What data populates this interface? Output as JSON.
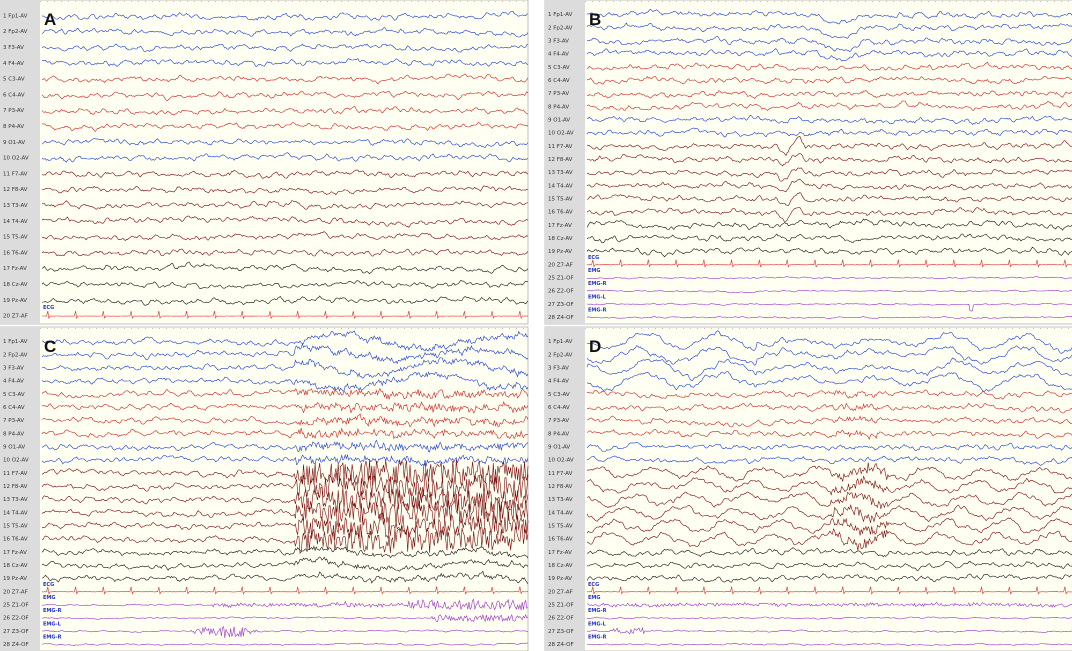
{
  "panels": [
    {
      "letter": "A",
      "channels": [
        {
          "label": "1 Fp1-AV",
          "color": "#1a3cd0"
        },
        {
          "label": "2 Fp2-AV",
          "color": "#1a3cd0"
        },
        {
          "label": "3 F3-AV",
          "color": "#1a3cd0"
        },
        {
          "label": "4 F4-AV",
          "color": "#1a3cd0"
        },
        {
          "label": "5 C3-AV",
          "color": "#cc2222"
        },
        {
          "label": "6 C4-AV",
          "color": "#cc2222"
        },
        {
          "label": "7 P3-AV",
          "color": "#cc2222"
        },
        {
          "label": "8 P4-AV",
          "color": "#cc2222"
        },
        {
          "label": "9 O1-AV",
          "color": "#1a3cd0"
        },
        {
          "label": "10 O2-AV",
          "color": "#1a3cd0"
        },
        {
          "label": "11 F7-AV",
          "color": "#7a0a0a"
        },
        {
          "label": "12 F8-AV",
          "color": "#7a0a0a"
        },
        {
          "label": "13 T3-AV",
          "color": "#7a0a0a"
        },
        {
          "label": "14 T4-AV",
          "color": "#7a0a0a"
        },
        {
          "label": "15 T5-AV",
          "color": "#7a0a0a"
        },
        {
          "label": "16 T6-AV",
          "color": "#7a0a0a"
        },
        {
          "label": "17 Fz-AV",
          "color": "#111111"
        },
        {
          "label": "18 Cz-AV",
          "color": "#111111"
        },
        {
          "label": "19 Pz-AV",
          "color": "#111111"
        },
        {
          "label": "20 Z7-AF",
          "tag": "ECG",
          "color": "#e03030"
        }
      ]
    },
    {
      "letter": "B",
      "channels": [
        {
          "label": "1 Fp1-AV",
          "color": "#1a3cd0"
        },
        {
          "label": "2 Fp2-AV",
          "color": "#1a3cd0"
        },
        {
          "label": "3 F3-AV",
          "color": "#1a3cd0"
        },
        {
          "label": "4 F4-AV",
          "color": "#1a3cd0"
        },
        {
          "label": "5 C3-AV",
          "color": "#cc2222"
        },
        {
          "label": "6 C4-AV",
          "color": "#cc2222"
        },
        {
          "label": "7 P3-AV",
          "color": "#cc2222"
        },
        {
          "label": "8 P4-AV",
          "color": "#cc2222"
        },
        {
          "label": "9 O1-AV",
          "color": "#1a3cd0"
        },
        {
          "label": "10 O2-AV",
          "color": "#1a3cd0"
        },
        {
          "label": "11 F7-AV",
          "color": "#7a0a0a"
        },
        {
          "label": "12 F8-AV",
          "color": "#7a0a0a"
        },
        {
          "label": "13 T3-AV",
          "color": "#7a0a0a"
        },
        {
          "label": "14 T4-AV",
          "color": "#7a0a0a"
        },
        {
          "label": "15 T5-AV",
          "color": "#7a0a0a"
        },
        {
          "label": "16 T6-AV",
          "color": "#7a0a0a"
        },
        {
          "label": "17 Fz-AV",
          "color": "#111111"
        },
        {
          "label": "18 Cz-AV",
          "color": "#111111"
        },
        {
          "label": "19 Pz-AV",
          "color": "#111111"
        },
        {
          "label": "20 Z7-AF",
          "tag": "ECG",
          "color": "#e03030"
        },
        {
          "label": "25 Z1-OF",
          "tag": "EMG",
          "color": "#9933cc"
        },
        {
          "label": "26 Z2-OF",
          "tag": "EMG-R",
          "color": "#9933cc"
        },
        {
          "label": "27 Z3-OF",
          "tag": "EMG-L",
          "color": "#9933cc"
        },
        {
          "label": "28 Z4-OF",
          "tag": "EMG-R",
          "color": "#9933cc"
        }
      ]
    },
    {
      "letter": "C",
      "channels": [
        {
          "label": "1 Fp1-AV",
          "color": "#1a3cd0"
        },
        {
          "label": "2 Fp2-AV",
          "color": "#1a3cd0"
        },
        {
          "label": "3 F3-AV",
          "color": "#1a3cd0"
        },
        {
          "label": "4 F4-AV",
          "color": "#1a3cd0"
        },
        {
          "label": "5 C3-AV",
          "color": "#cc2222"
        },
        {
          "label": "6 C4-AV",
          "color": "#cc2222"
        },
        {
          "label": "7 P3-AV",
          "color": "#cc2222"
        },
        {
          "label": "8 P4-AV",
          "color": "#cc2222"
        },
        {
          "label": "9 O1-AV",
          "color": "#1a3cd0"
        },
        {
          "label": "10 O2-AV",
          "color": "#1a3cd0"
        },
        {
          "label": "11 F7-AV",
          "color": "#7a0a0a"
        },
        {
          "label": "12 F8-AV",
          "color": "#7a0a0a"
        },
        {
          "label": "13 T3-AV",
          "color": "#7a0a0a"
        },
        {
          "label": "14 T4-AV",
          "color": "#7a0a0a"
        },
        {
          "label": "15 T5-AV",
          "color": "#7a0a0a"
        },
        {
          "label": "16 T6-AV",
          "color": "#7a0a0a"
        },
        {
          "label": "17 Fz-AV",
          "color": "#111111"
        },
        {
          "label": "18 Cz-AV",
          "color": "#111111"
        },
        {
          "label": "19 Pz-AV",
          "color": "#111111"
        },
        {
          "label": "20 Z7-AF",
          "tag": "ECG",
          "color": "#e03030"
        },
        {
          "label": "25 Z1-OF",
          "tag": "EMG",
          "color": "#9933cc"
        },
        {
          "label": "26 Z2-OF",
          "tag": "EMG-R",
          "color": "#9933cc"
        },
        {
          "label": "27 Z3-OF",
          "tag": "EMG-L",
          "color": "#9933cc"
        },
        {
          "label": "28 Z4-OF",
          "tag": "EMG-R",
          "color": "#9933cc"
        }
      ]
    },
    {
      "letter": "D",
      "channels": [
        {
          "label": "1 Fp1-AV",
          "color": "#1a3cd0"
        },
        {
          "label": "2 Fp2-AV",
          "color": "#1a3cd0"
        },
        {
          "label": "3 F3-AV",
          "color": "#1a3cd0"
        },
        {
          "label": "4 F4-AV",
          "color": "#1a3cd0"
        },
        {
          "label": "5 C3-AV",
          "color": "#cc2222"
        },
        {
          "label": "6 C4-AV",
          "color": "#cc2222"
        },
        {
          "label": "7 P3-AV",
          "color": "#cc2222"
        },
        {
          "label": "8 P4-AV",
          "color": "#cc2222"
        },
        {
          "label": "9 O1-AV",
          "color": "#1a3cd0"
        },
        {
          "label": "10 O2-AV",
          "color": "#1a3cd0"
        },
        {
          "label": "11 F7-AV",
          "color": "#7a0a0a"
        },
        {
          "label": "12 F8-AV",
          "color": "#7a0a0a"
        },
        {
          "label": "13 T3-AV",
          "color": "#7a0a0a"
        },
        {
          "label": "14 T4-AV",
          "color": "#7a0a0a"
        },
        {
          "label": "15 T5-AV",
          "color": "#7a0a0a"
        },
        {
          "label": "16 T6-AV",
          "color": "#7a0a0a"
        },
        {
          "label": "17 Fz-AV",
          "color": "#111111"
        },
        {
          "label": "18 Cz-AV",
          "color": "#111111"
        },
        {
          "label": "19 Pz-AV",
          "color": "#111111"
        },
        {
          "label": "20 Z7-AF",
          "tag": "ECG",
          "color": "#e03030"
        },
        {
          "label": "25 Z1-OF",
          "tag": "EMG",
          "color": "#9933cc"
        },
        {
          "label": "26 Z2-OF",
          "tag": "EMG-R",
          "color": "#9933cc"
        },
        {
          "label": "27 Z3-OF",
          "tag": "EMG-L",
          "color": "#9933cc"
        },
        {
          "label": "28 Z4-OF",
          "tag": "EMG-R",
          "color": "#9933cc"
        }
      ]
    }
  ]
}
